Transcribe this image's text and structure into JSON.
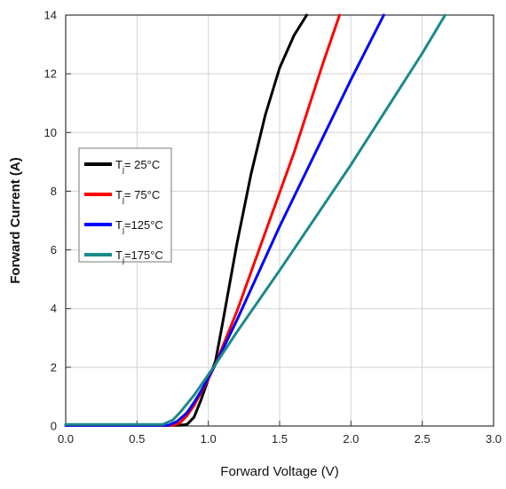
{
  "chart_data": {
    "type": "line",
    "xlabel": "Forward Voltage (V)",
    "ylabel": "Forward Current (A)",
    "xlim": [
      0.0,
      3.0
    ],
    "ylim": [
      0,
      14
    ],
    "x_ticks": [
      "0.0",
      "0.5",
      "1.0",
      "1.5",
      "2.0",
      "2.5",
      "3.0"
    ],
    "y_ticks": [
      "0",
      "2",
      "4",
      "6",
      "8",
      "10",
      "12",
      "14"
    ],
    "grid": true,
    "legend_position": "left",
    "series": [
      {
        "name": "Tj= 25°C",
        "legend_main": "T",
        "legend_sub": "j",
        "legend_rest": "= 25°C",
        "color": "#000000",
        "x": [
          0.0,
          0.5,
          0.8,
          0.85,
          0.9,
          0.95,
          1.0,
          1.05,
          1.1,
          1.2,
          1.3,
          1.4,
          1.5,
          1.6,
          1.69
        ],
        "y": [
          0.02,
          0.02,
          0.02,
          0.05,
          0.3,
          0.9,
          1.6,
          2.2,
          3.5,
          6.2,
          8.6,
          10.6,
          12.2,
          13.3,
          14.0
        ]
      },
      {
        "name": "Tj= 75°C",
        "legend_main": "T",
        "legend_sub": "j",
        "legend_rest": "= 75°C",
        "color": "#ff0000",
        "x": [
          0.0,
          0.5,
          0.75,
          0.8,
          0.85,
          0.9,
          0.95,
          1.0,
          1.05,
          1.2,
          1.4,
          1.6,
          1.8,
          1.92
        ],
        "y": [
          0.02,
          0.02,
          0.02,
          0.1,
          0.35,
          0.7,
          1.15,
          1.6,
          2.1,
          3.9,
          6.6,
          9.3,
          12.3,
          14.0
        ]
      },
      {
        "name": "Tj=125°C",
        "legend_main": "T",
        "legend_sub": "j",
        "legend_rest": "=125°C",
        "color": "#0000ff",
        "x": [
          0.0,
          0.5,
          0.72,
          0.78,
          0.85,
          0.9,
          0.95,
          1.0,
          1.05,
          1.2,
          1.5,
          1.8,
          2.0,
          2.23
        ],
        "y": [
          0.02,
          0.02,
          0.02,
          0.15,
          0.45,
          0.8,
          1.2,
          1.65,
          2.1,
          3.6,
          6.8,
          9.8,
          11.8,
          14.0
        ]
      },
      {
        "name": "Tj=175°C",
        "legend_main": "T",
        "legend_sub": "j",
        "legend_rest": "=175°C",
        "color": "#1b8a87",
        "x": [
          0.0,
          0.5,
          0.68,
          0.75,
          0.8,
          0.85,
          0.9,
          0.95,
          1.0,
          1.05,
          1.2,
          1.5,
          2.0,
          2.5,
          2.66
        ],
        "y": [
          0.05,
          0.05,
          0.05,
          0.2,
          0.45,
          0.75,
          1.05,
          1.4,
          1.75,
          2.1,
          3.2,
          5.3,
          8.9,
          12.7,
          14.0
        ]
      }
    ]
  }
}
